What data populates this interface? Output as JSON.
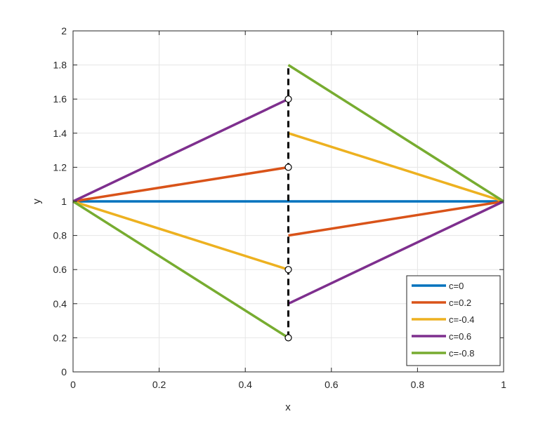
{
  "chart_data": {
    "type": "line",
    "title": "",
    "xlabel": "x",
    "ylabel": "y",
    "xlim": [
      0,
      1
    ],
    "ylim": [
      0,
      2
    ],
    "xticks": [
      "0",
      "0.2",
      "0.4",
      "0.6",
      "0.8",
      "1"
    ],
    "yticks": [
      "0",
      "0.2",
      "0.4",
      "0.6",
      "0.8",
      "1",
      "1.2",
      "1.4",
      "1.6",
      "1.8",
      "2"
    ],
    "grid": true,
    "legend_position": "bottom-right",
    "discontinuity": {
      "x": 0.5,
      "y_range": [
        0.2,
        1.8
      ],
      "style": "dashed",
      "color": "#000000",
      "open_circles": [
        0.2,
        0.6,
        1.2,
        1.6
      ]
    },
    "series": [
      {
        "name": "c=0",
        "color": "#0072BD",
        "segments": [
          [
            {
              "x": 0,
              "y": 1
            },
            {
              "x": 1,
              "y": 1
            }
          ]
        ]
      },
      {
        "name": "c=0.2",
        "color": "#D95319",
        "segments": [
          [
            {
              "x": 0,
              "y": 1
            },
            {
              "x": 0.5,
              "y": 1.2
            }
          ],
          [
            {
              "x": 0.5,
              "y": 0.8
            },
            {
              "x": 1,
              "y": 1
            }
          ]
        ]
      },
      {
        "name": "c=-0.4",
        "color": "#EDB120",
        "segments": [
          [
            {
              "x": 0,
              "y": 1
            },
            {
              "x": 0.5,
              "y": 0.6
            }
          ],
          [
            {
              "x": 0.5,
              "y": 1.4
            },
            {
              "x": 1,
              "y": 1
            }
          ]
        ]
      },
      {
        "name": "c=0.6",
        "color": "#7E2F8E",
        "segments": [
          [
            {
              "x": 0,
              "y": 1
            },
            {
              "x": 0.5,
              "y": 1.6
            }
          ],
          [
            {
              "x": 0.5,
              "y": 0.4
            },
            {
              "x": 1,
              "y": 1
            }
          ]
        ]
      },
      {
        "name": "c=-0.8",
        "color": "#77AC30",
        "segments": [
          [
            {
              "x": 0,
              "y": 1
            },
            {
              "x": 0.5,
              "y": 0.2
            }
          ],
          [
            {
              "x": 0.5,
              "y": 1.8
            },
            {
              "x": 1,
              "y": 1
            }
          ]
        ]
      }
    ]
  }
}
